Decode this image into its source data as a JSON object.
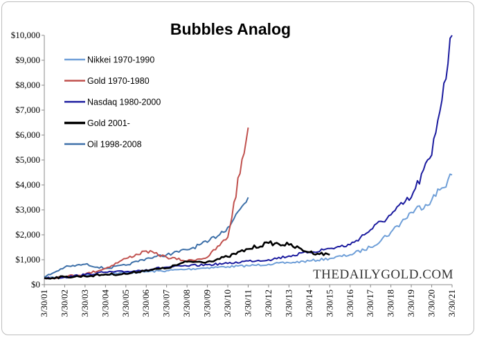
{
  "chart_data": {
    "type": "line",
    "title": "Bubbles Analog",
    "xlabel": "",
    "ylabel": "",
    "x_start": "3/30/01",
    "x_end": "3/30/21",
    "x_ticks": [
      "3/30/01",
      "3/30/02",
      "3/30/03",
      "3/30/04",
      "3/30/05",
      "3/30/06",
      "3/30/07",
      "3/30/08",
      "3/30/09",
      "3/30/10",
      "3/30/11",
      "3/30/12",
      "3/30/13",
      "3/30/14",
      "3/30/15",
      "3/30/16",
      "3/30/17",
      "3/30/18",
      "3/30/19",
      "3/30/20",
      "3/30/21"
    ],
    "ylim": [
      0,
      10000
    ],
    "y_ticks": [
      0,
      1000,
      2000,
      3000,
      4000,
      5000,
      6000,
      7000,
      8000,
      9000,
      10000
    ],
    "y_tick_labels": [
      "$0",
      "$1,000",
      "$2,000",
      "$3,000",
      "$4,000",
      "$5,000",
      "$6,000",
      "$7,000",
      "$8,000",
      "$9,000",
      "$10,000"
    ],
    "grid": false,
    "legend_position": "top-left",
    "watermark": "THEDAILYGOLD.COM",
    "series": [
      {
        "name": "Nikkei 1970-1990",
        "color": "#6f9fd8",
        "points": [
          [
            "3/30/01",
            260
          ],
          [
            "3/30/02",
            320
          ],
          [
            "3/30/03",
            380
          ],
          [
            "3/30/04",
            420
          ],
          [
            "3/30/05",
            480
          ],
          [
            "3/30/06",
            520
          ],
          [
            "3/30/07",
            560
          ],
          [
            "3/30/08",
            620
          ],
          [
            "3/30/09",
            680
          ],
          [
            "3/30/10",
            720
          ],
          [
            "3/30/11",
            760
          ],
          [
            "3/30/12",
            820
          ],
          [
            "3/30/13",
            880
          ],
          [
            "3/30/14",
            950
          ],
          [
            "3/30/15",
            1050
          ],
          [
            "3/30/16",
            1200
          ],
          [
            "3/30/17",
            1500
          ],
          [
            "3/30/18",
            2100
          ],
          [
            "3/30/19",
            2900
          ],
          [
            "3/30/20",
            3400
          ],
          [
            "3/30/21",
            4400
          ]
        ]
      },
      {
        "name": "Gold 1970-1980",
        "color": "#c0504d",
        "points": [
          [
            "3/30/01",
            250
          ],
          [
            "3/30/02",
            330
          ],
          [
            "3/30/03",
            420
          ],
          [
            "3/30/04",
            650
          ],
          [
            "3/30/05",
            1050
          ],
          [
            "3/30/06",
            1350
          ],
          [
            "3/30/07",
            1100
          ],
          [
            "3/30/08",
            950
          ],
          [
            "3/30/09",
            1100
          ],
          [
            "3/30/10",
            1900
          ],
          [
            "3/30/11",
            6300
          ]
        ]
      },
      {
        "name": "Nasdaq 1980-2000",
        "color": "#1a1a9e",
        "points": [
          [
            "3/30/01",
            260
          ],
          [
            "3/30/02",
            300
          ],
          [
            "3/30/03",
            400
          ],
          [
            "3/30/04",
            500
          ],
          [
            "3/30/05",
            520
          ],
          [
            "3/30/06",
            600
          ],
          [
            "3/30/07",
            700
          ],
          [
            "3/30/08",
            750
          ],
          [
            "3/30/09",
            800
          ],
          [
            "3/30/10",
            850
          ],
          [
            "3/30/11",
            950
          ],
          [
            "3/30/12",
            1000
          ],
          [
            "3/30/13",
            1150
          ],
          [
            "3/30/14",
            1300
          ],
          [
            "3/30/15",
            1450
          ],
          [
            "3/30/16",
            1600
          ],
          [
            "3/30/17",
            2200
          ],
          [
            "3/30/18",
            2800
          ],
          [
            "3/30/19",
            3500
          ],
          [
            "3/30/20",
            5200
          ],
          [
            "3/30/21",
            10000
          ]
        ]
      },
      {
        "name": "Gold 2001-",
        "color": "#000000",
        "points": [
          [
            "3/30/01",
            260
          ],
          [
            "3/30/02",
            310
          ],
          [
            "3/30/03",
            340
          ],
          [
            "3/30/04",
            410
          ],
          [
            "3/30/05",
            430
          ],
          [
            "3/30/06",
            580
          ],
          [
            "3/30/07",
            660
          ],
          [
            "3/30/08",
            920
          ],
          [
            "3/30/09",
            920
          ],
          [
            "3/30/10",
            1120
          ],
          [
            "3/30/11",
            1430
          ],
          [
            "3/30/12",
            1670
          ],
          [
            "3/30/13",
            1600
          ],
          [
            "3/30/14",
            1300
          ],
          [
            "3/30/15",
            1200
          ]
        ]
      },
      {
        "name": "Oil 1998-2008",
        "color": "#3c6fa8",
        "points": [
          [
            "3/30/01",
            300
          ],
          [
            "3/30/02",
            700
          ],
          [
            "3/30/03",
            820
          ],
          [
            "3/30/04",
            650
          ],
          [
            "3/30/05",
            780
          ],
          [
            "3/30/06",
            1050
          ],
          [
            "3/30/07",
            1200
          ],
          [
            "3/30/08",
            1400
          ],
          [
            "3/30/09",
            1700
          ],
          [
            "3/30/10",
            2300
          ],
          [
            "3/30/11",
            3500
          ]
        ]
      }
    ]
  }
}
